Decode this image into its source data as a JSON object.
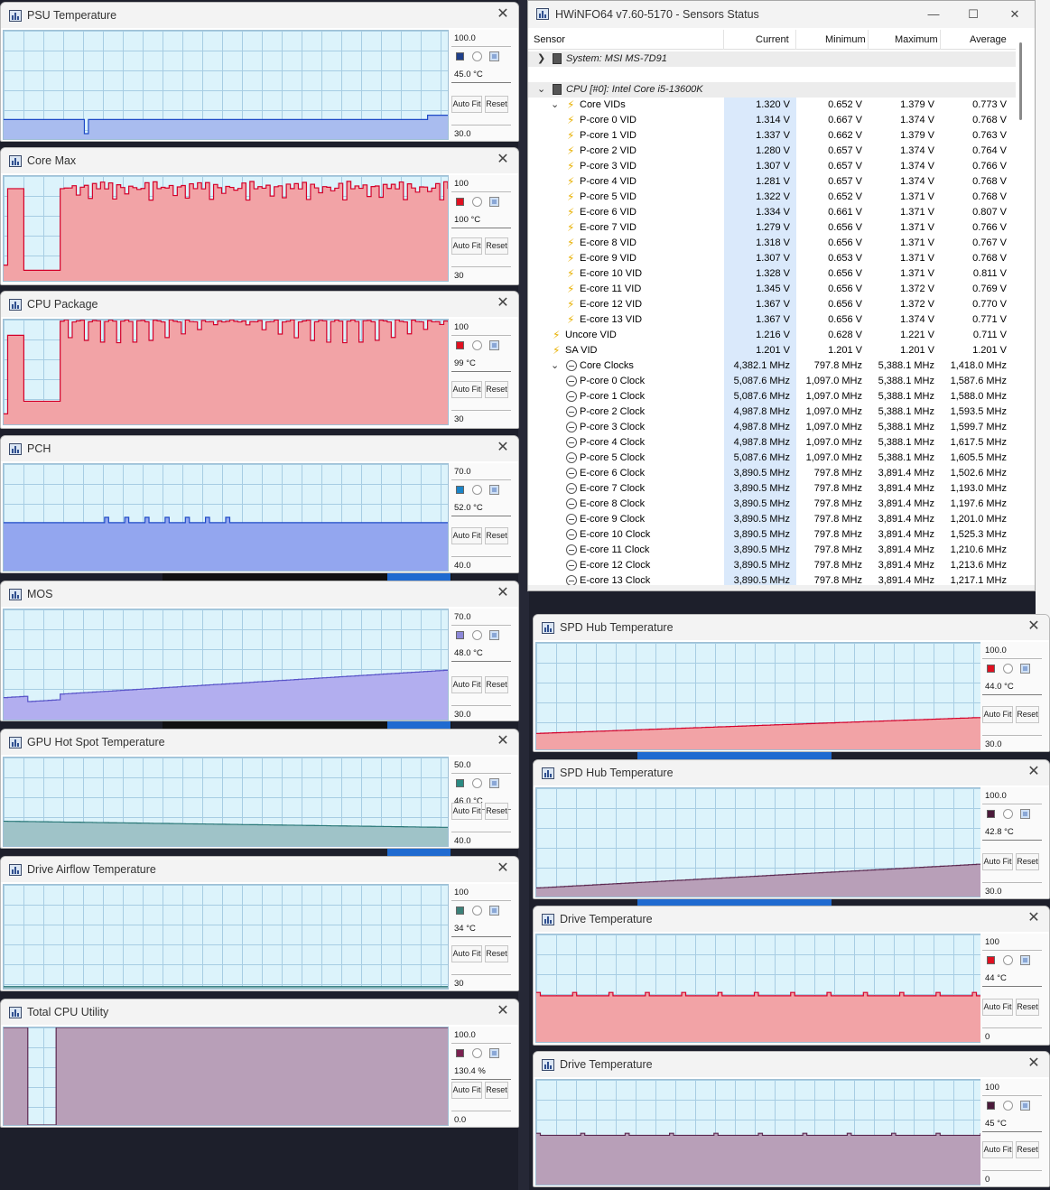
{
  "palette": {
    "plot_bg": "#dcf3fb",
    "red_fill": "#f2a3a6",
    "red_line": "#d4002a",
    "blue_fill": "#93a6ef",
    "blue_line": "#1e4ac7",
    "lavender_fill": "#b2aeef",
    "lavender_line": "#5753c8",
    "teal_fill": "#9fc3c8",
    "teal_line": "#297777",
    "mauve_fill": "#b89fb8",
    "mauve_line": "#5b2850",
    "current_col_bg": "#dae9fb"
  },
  "graph_windows": [
    {
      "title": "PSU Temperature",
      "max_label": "100.0",
      "current_value": "45.0 °C",
      "min_label": "30.0",
      "swatch_color": "#1f3f8a",
      "line_color": "#1e4ac7",
      "fill_color": "#a9bcef",
      "autofit_label": "Auto Fit",
      "reset_label": "Reset"
    },
    {
      "title": "Core Max",
      "max_label": "100",
      "current_value": "100 °C",
      "min_label": "30",
      "swatch_color": "#e01020",
      "line_color": "#d4002a",
      "fill_color": "#f2a3a6",
      "autofit_label": "Auto Fit",
      "reset_label": "Reset"
    },
    {
      "title": "CPU Package",
      "max_label": "100",
      "current_value": "99 °C",
      "min_label": "30",
      "swatch_color": "#e01020",
      "line_color": "#d4002a",
      "fill_color": "#f2a3a6",
      "autofit_label": "Auto Fit",
      "reset_label": "Reset"
    },
    {
      "title": "PCH",
      "max_label": "70.0",
      "current_value": "52.0 °C",
      "min_label": "40.0",
      "swatch_color": "#1a84c7",
      "line_color": "#1e4ac7",
      "fill_color": "#93a6ef",
      "autofit_label": "Auto Fit",
      "reset_label": "Reset"
    },
    {
      "title": "MOS",
      "max_label": "70.0",
      "current_value": "48.0 °C",
      "min_label": "30.0",
      "swatch_color": "#8c88d8",
      "line_color": "#5753c8",
      "fill_color": "#b2aeef",
      "autofit_label": "Auto Fit",
      "reset_label": "Reset"
    },
    {
      "title": "GPU Hot Spot Temperature",
      "max_label": "50.0",
      "current_value": "46.0 °C",
      "min_label": "40.0",
      "swatch_color": "#2a8a82",
      "line_color": "#297777",
      "fill_color": "#9fc3c8",
      "autofit_label": "Auto Fit",
      "reset_label": "Reset"
    },
    {
      "title": "Drive Airflow Temperature",
      "max_label": "100",
      "current_value": "34 °C",
      "min_label": "30",
      "swatch_color": "#3b8078",
      "line_color": "#297777",
      "fill_color": "#9fc3c8",
      "autofit_label": "Auto Fit",
      "reset_label": "Reset"
    },
    {
      "title": "Total CPU Utility",
      "max_label": "100.0",
      "current_value": "130.4 %",
      "min_label": "0.0",
      "swatch_color": "#7a2050",
      "line_color": "#5b2850",
      "fill_color": "#b89fb8",
      "autofit_label": "Auto Fit",
      "reset_label": "Reset"
    },
    {
      "title": "SPD Hub Temperature",
      "max_label": "100.0",
      "current_value": "44.0 °C",
      "min_label": "30.0",
      "swatch_color": "#e01020",
      "line_color": "#d4002a",
      "fill_color": "#f2a3a6",
      "autofit_label": "Auto Fit",
      "reset_label": "Reset"
    },
    {
      "title": "SPD Hub Temperature",
      "max_label": "100.0",
      "current_value": "42.8 °C",
      "min_label": "30.0",
      "swatch_color": "#4a1a3a",
      "line_color": "#5b2850",
      "fill_color": "#b89fb8",
      "autofit_label": "Auto Fit",
      "reset_label": "Reset"
    },
    {
      "title": "Drive Temperature",
      "max_label": "100",
      "current_value": "44 °C",
      "min_label": "0",
      "swatch_color": "#e01020",
      "line_color": "#d4002a",
      "fill_color": "#f2a3a6",
      "autofit_label": "Auto Fit",
      "reset_label": "Reset"
    },
    {
      "title": "Drive Temperature",
      "max_label": "100",
      "current_value": "45 °C",
      "min_label": "0",
      "swatch_color": "#4a1a3a",
      "line_color": "#5b2850",
      "fill_color": "#b89fb8",
      "autofit_label": "Auto Fit",
      "reset_label": "Reset"
    }
  ],
  "hwinfo": {
    "title": "HWiNFO64 v7.60-5170 - Sensors Status",
    "columns": [
      "Sensor",
      "Current",
      "Minimum",
      "Maximum",
      "Average"
    ],
    "rows": [
      {
        "kind": "group",
        "name": "System: MSI MS-7D91",
        "cur": "",
        "min": "",
        "max": "",
        "avg": ""
      },
      {
        "kind": "spacer",
        "name": "",
        "cur": "",
        "min": "",
        "max": "",
        "avg": ""
      },
      {
        "kind": "group",
        "name": "CPU [#0]: Intel Core i5-13600K",
        "cur": "",
        "min": "",
        "max": "",
        "avg": ""
      },
      {
        "kind": "parent-volt",
        "name": "Core VIDs",
        "cur": "1.320 V",
        "min": "0.652 V",
        "max": "1.379 V",
        "avg": "0.773 V"
      },
      {
        "kind": "volt",
        "name": "P-core 0 VID",
        "cur": "1.314 V",
        "min": "0.667 V",
        "max": "1.374 V",
        "avg": "0.768 V"
      },
      {
        "kind": "volt",
        "name": "P-core 1 VID",
        "cur": "1.337 V",
        "min": "0.662 V",
        "max": "1.379 V",
        "avg": "0.763 V"
      },
      {
        "kind": "volt",
        "name": "P-core 2 VID",
        "cur": "1.280 V",
        "min": "0.657 V",
        "max": "1.374 V",
        "avg": "0.764 V"
      },
      {
        "kind": "volt",
        "name": "P-core 3 VID",
        "cur": "1.307 V",
        "min": "0.657 V",
        "max": "1.374 V",
        "avg": "0.766 V"
      },
      {
        "kind": "volt",
        "name": "P-core 4 VID",
        "cur": "1.281 V",
        "min": "0.657 V",
        "max": "1.374 V",
        "avg": "0.768 V"
      },
      {
        "kind": "volt",
        "name": "P-core 5 VID",
        "cur": "1.322 V",
        "min": "0.652 V",
        "max": "1.371 V",
        "avg": "0.768 V"
      },
      {
        "kind": "volt",
        "name": "E-core 6 VID",
        "cur": "1.334 V",
        "min": "0.661 V",
        "max": "1.371 V",
        "avg": "0.807 V"
      },
      {
        "kind": "volt",
        "name": "E-core 7 VID",
        "cur": "1.279 V",
        "min": "0.656 V",
        "max": "1.371 V",
        "avg": "0.766 V"
      },
      {
        "kind": "volt",
        "name": "E-core 8 VID",
        "cur": "1.318 V",
        "min": "0.656 V",
        "max": "1.371 V",
        "avg": "0.767 V"
      },
      {
        "kind": "volt",
        "name": "E-core 9 VID",
        "cur": "1.307 V",
        "min": "0.653 V",
        "max": "1.371 V",
        "avg": "0.768 V"
      },
      {
        "kind": "volt",
        "name": "E-core 10 VID",
        "cur": "1.328 V",
        "min": "0.656 V",
        "max": "1.371 V",
        "avg": "0.811 V"
      },
      {
        "kind": "volt",
        "name": "E-core 11 VID",
        "cur": "1.345 V",
        "min": "0.656 V",
        "max": "1.372 V",
        "avg": "0.769 V"
      },
      {
        "kind": "volt",
        "name": "E-core 12 VID",
        "cur": "1.367 V",
        "min": "0.656 V",
        "max": "1.372 V",
        "avg": "0.770 V"
      },
      {
        "kind": "volt",
        "name": "E-core 13 VID",
        "cur": "1.367 V",
        "min": "0.656 V",
        "max": "1.374 V",
        "avg": "0.771 V"
      },
      {
        "kind": "top-volt",
        "name": "Uncore VID",
        "cur": "1.216 V",
        "min": "0.628 V",
        "max": "1.221 V",
        "avg": "0.711 V"
      },
      {
        "kind": "top-volt",
        "name": "SA VID",
        "cur": "1.201 V",
        "min": "1.201 V",
        "max": "1.201 V",
        "avg": "1.201 V"
      },
      {
        "kind": "parent-clock",
        "name": "Core Clocks",
        "cur": "4,382.1 MHz",
        "min": "797.8 MHz",
        "max": "5,388.1 MHz",
        "avg": "1,418.0 MHz"
      },
      {
        "kind": "clock",
        "name": "P-core 0 Clock",
        "cur": "5,087.6 MHz",
        "min": "1,097.0 MHz",
        "max": "5,388.1 MHz",
        "avg": "1,587.6 MHz"
      },
      {
        "kind": "clock",
        "name": "P-core 1 Clock",
        "cur": "5,087.6 MHz",
        "min": "1,097.0 MHz",
        "max": "5,388.1 MHz",
        "avg": "1,588.0 MHz"
      },
      {
        "kind": "clock",
        "name": "P-core 2 Clock",
        "cur": "4,987.8 MHz",
        "min": "1,097.0 MHz",
        "max": "5,388.1 MHz",
        "avg": "1,593.5 MHz"
      },
      {
        "kind": "clock",
        "name": "P-core 3 Clock",
        "cur": "4,987.8 MHz",
        "min": "1,097.0 MHz",
        "max": "5,388.1 MHz",
        "avg": "1,599.7 MHz"
      },
      {
        "kind": "clock",
        "name": "P-core 4 Clock",
        "cur": "4,987.8 MHz",
        "min": "1,097.0 MHz",
        "max": "5,388.1 MHz",
        "avg": "1,617.5 MHz"
      },
      {
        "kind": "clock",
        "name": "P-core 5 Clock",
        "cur": "5,087.6 MHz",
        "min": "1,097.0 MHz",
        "max": "5,388.1 MHz",
        "avg": "1,605.5 MHz"
      },
      {
        "kind": "clock",
        "name": "E-core 6 Clock",
        "cur": "3,890.5 MHz",
        "min": "797.8 MHz",
        "max": "3,891.4 MHz",
        "avg": "1,502.6 MHz"
      },
      {
        "kind": "clock",
        "name": "E-core 7 Clock",
        "cur": "3,890.5 MHz",
        "min": "797.8 MHz",
        "max": "3,891.4 MHz",
        "avg": "1,193.0 MHz"
      },
      {
        "kind": "clock",
        "name": "E-core 8 Clock",
        "cur": "3,890.5 MHz",
        "min": "797.8 MHz",
        "max": "3,891.4 MHz",
        "avg": "1,197.6 MHz"
      },
      {
        "kind": "clock",
        "name": "E-core 9 Clock",
        "cur": "3,890.5 MHz",
        "min": "797.8 MHz",
        "max": "3,891.4 MHz",
        "avg": "1,201.0 MHz"
      },
      {
        "kind": "clock",
        "name": "E-core 10 Clock",
        "cur": "3,890.5 MHz",
        "min": "797.8 MHz",
        "max": "3,891.4 MHz",
        "avg": "1,525.3 MHz"
      },
      {
        "kind": "clock",
        "name": "E-core 11 Clock",
        "cur": "3,890.5 MHz",
        "min": "797.8 MHz",
        "max": "3,891.4 MHz",
        "avg": "1,210.6 MHz"
      },
      {
        "kind": "clock",
        "name": "E-core 12 Clock",
        "cur": "3,890.5 MHz",
        "min": "797.8 MHz",
        "max": "3,891.4 MHz",
        "avg": "1,213.6 MHz"
      },
      {
        "kind": "clock",
        "name": "E-core 13 Clock",
        "cur": "3,890.5 MHz",
        "min": "797.8 MHz",
        "max": "3,891.4 MHz",
        "avg": "1,217.1 MHz"
      }
    ]
  }
}
